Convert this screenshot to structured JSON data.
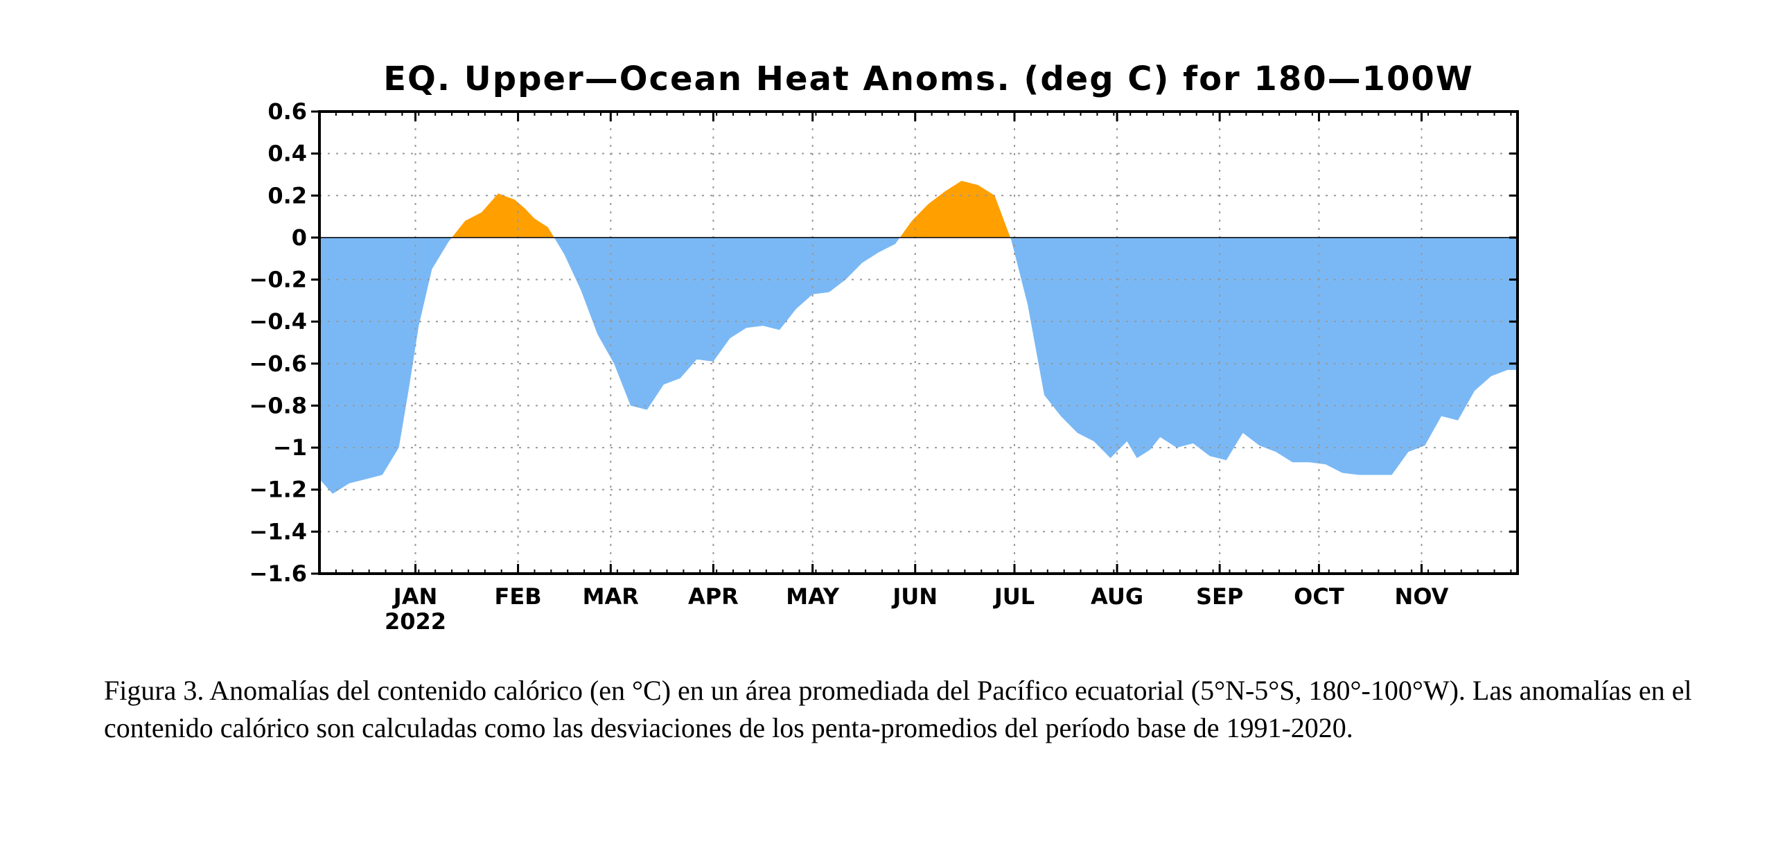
{
  "chart_data": {
    "type": "area",
    "title": "EQ. Upper—Ocean Heat Anoms. (deg C) for 180—100W",
    "xlabel": "",
    "ylabel": "",
    "ylim": [
      -1.6,
      0.6
    ],
    "yticks": [
      0.6,
      0.4,
      0.2,
      0,
      -0.2,
      -0.4,
      -0.6,
      -0.8,
      -1,
      -1.2,
      -1.4,
      -1.6
    ],
    "ytick_labels": [
      "0.6",
      "0.4",
      "0.2",
      "0",
      "−0.2",
      "−0.4",
      "−0.6",
      "−0.8",
      "−1",
      "−1.2",
      "−1.4",
      "−1.6"
    ],
    "x_unit": "date",
    "xlim": [
      "2021-12-03",
      "2022-11-30"
    ],
    "month_ticks": [
      {
        "date": "2022-01-01",
        "label": "JAN",
        "sublabel": "2022"
      },
      {
        "date": "2022-02-01",
        "label": "FEB"
      },
      {
        "date": "2022-03-01",
        "label": "MAR"
      },
      {
        "date": "2022-04-01",
        "label": "APR"
      },
      {
        "date": "2022-05-01",
        "label": "MAY"
      },
      {
        "date": "2022-06-01",
        "label": "JUN"
      },
      {
        "date": "2022-07-01",
        "label": "JUL"
      },
      {
        "date": "2022-08-01",
        "label": "AUG"
      },
      {
        "date": "2022-09-01",
        "label": "SEP"
      },
      {
        "date": "2022-10-01",
        "label": "OCT"
      },
      {
        "date": "2022-11-01",
        "label": "NOV"
      }
    ],
    "grid": true,
    "positive_color": "#ff9f00",
    "negative_color": "#7ab8f5",
    "series": [
      {
        "x": [
          "2021-12-03",
          "2021-12-07",
          "2021-12-12",
          "2021-12-17",
          "2021-12-22",
          "2021-12-27",
          "2021-12-30",
          "2022-01-02",
          "2022-01-06",
          "2022-01-11",
          "2022-01-16",
          "2022-01-21",
          "2022-01-26",
          "2022-01-31",
          "2022-02-03",
          "2022-02-06",
          "2022-02-10",
          "2022-02-15",
          "2022-02-20",
          "2022-02-25",
          "2022-03-02",
          "2022-03-07",
          "2022-03-12",
          "2022-03-17",
          "2022-03-22",
          "2022-03-27",
          "2022-04-01",
          "2022-04-06",
          "2022-04-11",
          "2022-04-16",
          "2022-04-21",
          "2022-04-26",
          "2022-05-01",
          "2022-05-06",
          "2022-05-11",
          "2022-05-16",
          "2022-05-21",
          "2022-05-26",
          "2022-05-31",
          "2022-06-05",
          "2022-06-10",
          "2022-06-15",
          "2022-06-20",
          "2022-06-25",
          "2022-06-30",
          "2022-07-05",
          "2022-07-10",
          "2022-07-15",
          "2022-07-20",
          "2022-07-25",
          "2022-07-30",
          "2022-08-04",
          "2022-08-07",
          "2022-08-11",
          "2022-08-14",
          "2022-08-19",
          "2022-08-24",
          "2022-08-29",
          "2022-09-03",
          "2022-09-08",
          "2022-09-13",
          "2022-09-18",
          "2022-09-23",
          "2022-09-28",
          "2022-10-03",
          "2022-10-08",
          "2022-10-13",
          "2022-10-18",
          "2022-10-23",
          "2022-10-28",
          "2022-11-02",
          "2022-11-07",
          "2022-11-12",
          "2022-11-17",
          "2022-11-22",
          "2022-11-27",
          "2022-11-30"
        ],
        "values": [
          -1.15,
          -1.22,
          -1.17,
          -1.15,
          -1.13,
          -1.0,
          -0.72,
          -0.42,
          -0.15,
          -0.02,
          0.08,
          0.12,
          0.21,
          0.18,
          0.14,
          0.09,
          0.05,
          -0.08,
          -0.25,
          -0.46,
          -0.6,
          -0.8,
          -0.82,
          -0.7,
          -0.67,
          -0.58,
          -0.59,
          -0.48,
          -0.43,
          -0.42,
          -0.44,
          -0.34,
          -0.27,
          -0.26,
          -0.2,
          -0.12,
          -0.07,
          -0.03,
          0.08,
          0.16,
          0.22,
          0.27,
          0.25,
          0.2,
          -0.01,
          -0.32,
          -0.75,
          -0.85,
          -0.93,
          -0.97,
          -1.05,
          -0.97,
          -1.05,
          -1.01,
          -0.95,
          -1.0,
          -0.98,
          -1.04,
          -1.06,
          -0.93,
          -0.99,
          -1.02,
          -1.07,
          -1.07,
          -1.08,
          -1.12,
          -1.13,
          -1.13,
          -1.13,
          -1.02,
          -0.99,
          -0.85,
          -0.87,
          -0.73,
          -0.66,
          -0.63,
          -0.63
        ]
      }
    ]
  },
  "caption": "Figura 3. Anomalías del contenido calórico (en °C) en un área promediada del Pacífico ecuatorial (5°N-5°S, 180°-100°W). Las anomalías en el contenido calórico son calculadas como las desviaciones de los penta-promedios del período base de 1991-2020."
}
